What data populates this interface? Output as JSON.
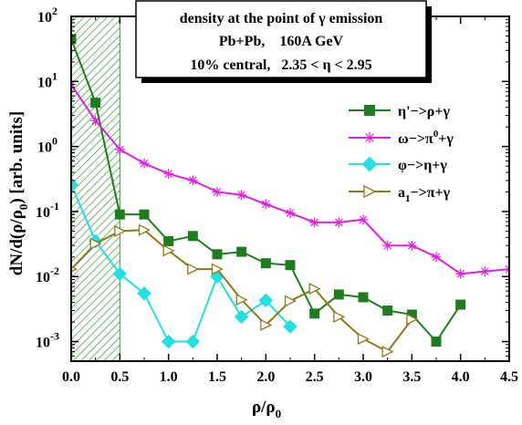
{
  "chart_data": {
    "type": "line",
    "y_scale": "log",
    "xlim": [
      0,
      4.5
    ],
    "ylim": [
      0.0005,
      100
    ],
    "x_ticks": [
      "0.0",
      "0.5",
      "1.0",
      "1.5",
      "2.0",
      "2.5",
      "3.0",
      "3.5",
      "4.0",
      "4.5"
    ],
    "y_ticks": [
      {
        "base": "10",
        "exp": "2"
      },
      {
        "base": "10",
        "exp": "1"
      },
      {
        "base": "10",
        "exp": "0"
      },
      {
        "base": "10",
        "exp": "-1"
      },
      {
        "base": "10",
        "exp": "-2"
      },
      {
        "base": "10",
        "exp": "-3"
      }
    ],
    "xlabel": {
      "main": "ρ/ρ",
      "sub": "0"
    },
    "ylabel": {
      "a": "dN/d(ρ/ρ",
      "sub": "0",
      "b": ") [arb. units]"
    },
    "shaded_region": [
      0,
      0.5
    ],
    "info_box": {
      "line1": "density at the point of γ emission",
      "line2": "Pb+Pb,    160A GeV",
      "line3": "10% central,   2.35 < η < 2.95"
    },
    "series": [
      {
        "name": "η'−>ρ+γ",
        "color": "#1e7d1e",
        "marker": "square",
        "x": [
          0.0,
          0.25,
          0.5,
          0.75,
          1.0,
          1.25,
          1.5,
          1.75,
          2.0,
          2.25,
          2.5,
          2.75,
          3.0,
          3.25,
          3.5,
          3.75,
          4.0
        ],
        "y": [
          45,
          4.7,
          0.09,
          0.09,
          0.035,
          0.042,
          0.022,
          0.024,
          0.016,
          0.015,
          0.0027,
          0.0053,
          0.0048,
          0.003,
          0.0026,
          0.001,
          0.0037
        ]
      },
      {
        "name": "ω−>π⁰+γ",
        "color": "#e020e0",
        "marker": "star",
        "x": [
          0.0,
          0.25,
          0.5,
          0.75,
          1.0,
          1.25,
          1.5,
          1.75,
          2.0,
          2.25,
          2.5,
          2.75,
          3.0,
          3.25,
          3.5,
          3.75,
          4.0,
          4.25,
          4.5
        ],
        "y": [
          9,
          2.5,
          0.9,
          0.55,
          0.38,
          0.3,
          0.2,
          0.18,
          0.13,
          0.095,
          0.068,
          0.068,
          0.075,
          0.03,
          0.03,
          0.02,
          0.011,
          0.012,
          0.013
        ]
      },
      {
        "name": "φ−>η+γ",
        "color": "#20e0e0",
        "marker": "diamond",
        "x": [
          0.0,
          0.25,
          0.5,
          0.75,
          1.0,
          1.25,
          1.5,
          1.75,
          2.0,
          2.25
        ],
        "y": [
          0.26,
          0.035,
          0.011,
          0.0055,
          0.001,
          0.001,
          0.01,
          0.0024,
          0.0043,
          0.0017
        ]
      },
      {
        "name": "a₁−>π+γ",
        "color": "#8a7a1a",
        "marker": "triangle-right",
        "x": [
          0.0,
          0.25,
          0.5,
          0.75,
          1.0,
          1.25,
          1.5,
          1.75,
          2.0,
          2.25,
          2.5,
          2.75,
          3.0,
          3.25,
          3.5
        ],
        "y": [
          0.013,
          0.032,
          0.05,
          0.052,
          0.025,
          0.013,
          0.013,
          0.0044,
          0.0018,
          0.0042,
          0.0065,
          0.0024,
          0.0011,
          0.0007,
          0.0022
        ]
      }
    ],
    "legend": [
      {
        "a": "η'−>ρ+γ"
      },
      {
        "a": "ω−>π",
        "sup": "0",
        "b": "+γ"
      },
      {
        "a": "φ−>η+γ"
      },
      {
        "a": "a",
        "sub": "1",
        "b": "−>π+γ"
      }
    ]
  }
}
